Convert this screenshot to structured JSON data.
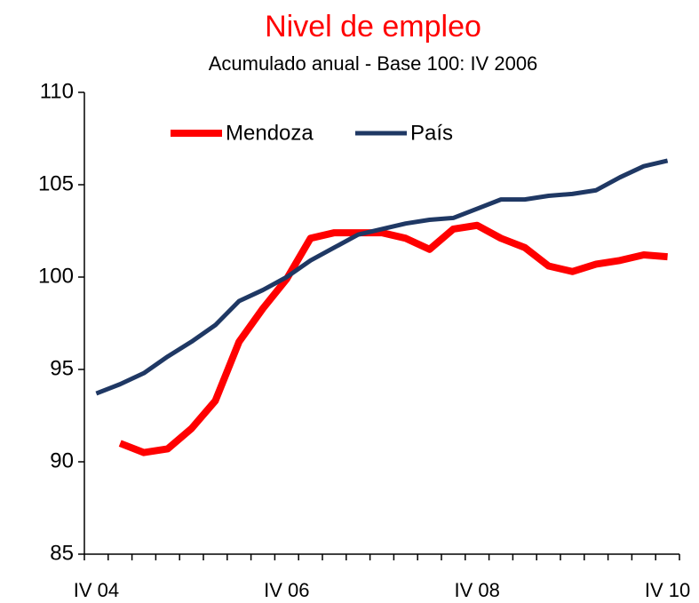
{
  "chart_data": {
    "type": "line",
    "title": "Nivel de empleo",
    "subtitle": "Acumulado anual - Base 100: IV 2006",
    "categories": [
      "IV 04",
      null,
      null,
      null,
      null,
      null,
      null,
      null,
      "IV 06",
      null,
      null,
      null,
      null,
      null,
      null,
      null,
      "IV 08",
      null,
      null,
      null,
      null,
      null,
      null,
      null,
      "IV 10"
    ],
    "series": [
      {
        "name": "Mendoza",
        "color": "#ff0000",
        "values": [
          null,
          91.0,
          90.5,
          90.7,
          91.8,
          93.3,
          96.5,
          98.3,
          99.9,
          102.1,
          102.4,
          102.4,
          102.4,
          102.1,
          101.5,
          102.6,
          102.8,
          102.1,
          101.6,
          100.6,
          100.3,
          100.7,
          100.9,
          101.2,
          101.1
        ]
      },
      {
        "name": "País",
        "color": "#1f3864",
        "values": [
          93.7,
          94.2,
          94.8,
          95.7,
          96.5,
          97.4,
          98.7,
          99.3,
          100.0,
          100.9,
          101.6,
          102.3,
          102.6,
          102.9,
          103.1,
          103.2,
          103.7,
          104.2,
          104.2,
          104.4,
          104.5,
          104.7,
          105.4,
          106.0,
          106.3
        ]
      }
    ],
    "ylim": [
      85,
      110
    ],
    "yticks": [
      85,
      90,
      95,
      100,
      105,
      110
    ],
    "legend": "top"
  }
}
